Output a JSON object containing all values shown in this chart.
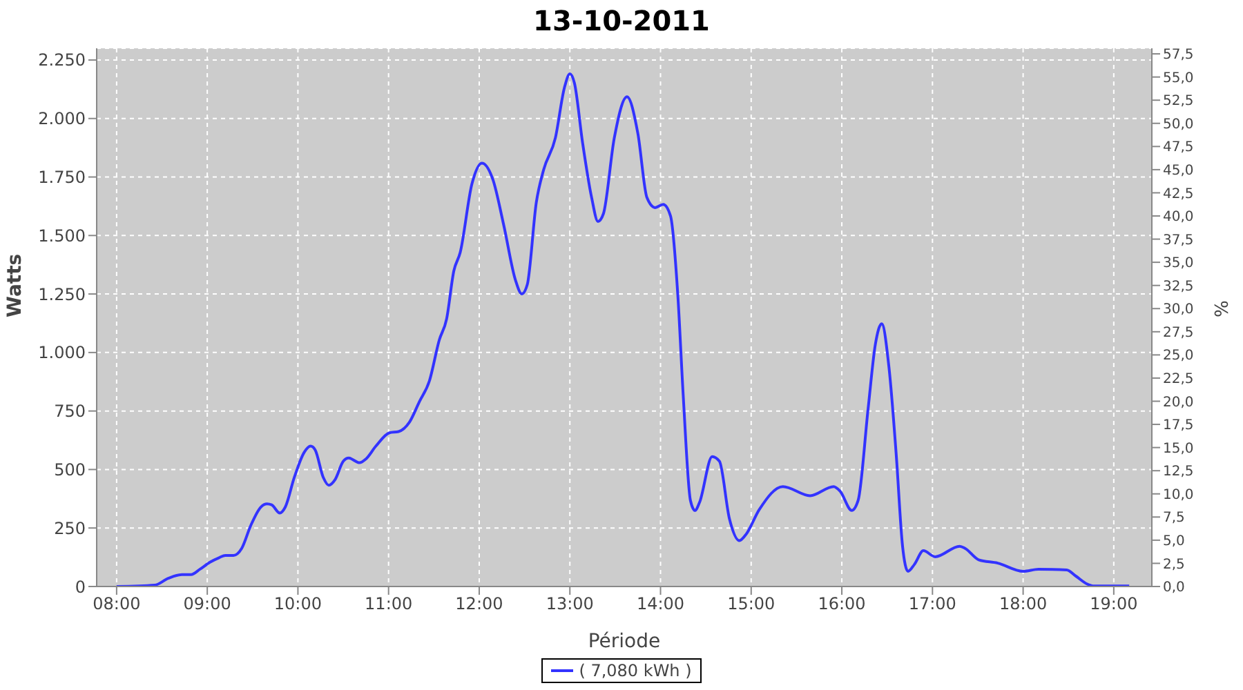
{
  "chart_data": {
    "type": "line",
    "title": "13-10-2011",
    "xlabel": "Période",
    "ylabel": "Watts",
    "y2label": "%",
    "x": [
      8.0,
      8.42,
      8.57,
      8.72,
      8.82,
      8.92,
      9.03,
      9.13,
      9.2,
      9.29,
      9.38,
      9.48,
      9.59,
      9.66,
      9.71,
      9.8,
      9.86,
      9.96,
      10.07,
      10.14,
      10.19,
      10.28,
      10.34,
      10.41,
      10.5,
      10.56,
      10.68,
      10.75,
      10.86,
      11.01,
      11.11,
      11.23,
      11.34,
      11.45,
      11.56,
      11.64,
      11.72,
      11.79,
      11.92,
      12.03,
      12.15,
      12.27,
      12.4,
      12.47,
      12.53,
      12.63,
      12.71,
      12.84,
      12.94,
      13.0,
      13.05,
      13.14,
      13.24,
      13.31,
      13.37,
      13.49,
      13.63,
      13.75,
      13.85,
      13.94,
      14.03,
      14.11,
      14.19,
      14.25,
      14.33,
      14.38,
      14.43,
      14.57,
      14.65,
      14.76,
      14.87,
      14.94,
      15.09,
      15.35,
      15.65,
      15.91,
      15.98,
      16.11,
      16.18,
      16.29,
      16.37,
      16.44,
      16.52,
      16.6,
      16.67,
      16.73,
      16.8,
      16.9,
      17.03,
      17.3,
      17.36,
      17.51,
      17.72,
      18.0,
      18.17,
      18.48,
      18.58,
      18.71,
      18.78,
      19.17
    ],
    "series": [
      {
        "name": "( 7,080 kWh )",
        "color": "#3333ff",
        "values": [
          0,
          6,
          35,
          51,
          51,
          74,
          104,
          123,
          133,
          133,
          163,
          261,
          339,
          353,
          349,
          314,
          339,
          466,
          574,
          600,
          584,
          466,
          433,
          457,
          535,
          549,
          529,
          545,
          600,
          657,
          662,
          702,
          790,
          878,
          1054,
          1143,
          1349,
          1427,
          1721,
          1809,
          1740,
          1545,
          1309,
          1250,
          1290,
          1642,
          1780,
          1917,
          2132,
          2191,
          2152,
          1897,
          1662,
          1560,
          1593,
          1917,
          2093,
          1936,
          1662,
          1619,
          1633,
          1584,
          1250,
          819,
          368,
          325,
          359,
          555,
          535,
          290,
          196,
          221,
          329,
          427,
          388,
          427,
          408,
          325,
          368,
          760,
          1035,
          1123,
          937,
          564,
          172,
          65,
          94,
          153,
          127,
          172,
          163,
          114,
          100,
          65,
          74,
          71,
          45,
          10,
          2,
          2
        ]
      }
    ],
    "xlim": [
      7.78,
      19.42
    ],
    "xticks": [
      {
        "value": 8,
        "label": "08:00"
      },
      {
        "value": 9,
        "label": "09:00"
      },
      {
        "value": 10,
        "label": "10:00"
      },
      {
        "value": 11,
        "label": "11:00"
      },
      {
        "value": 12,
        "label": "12:00"
      },
      {
        "value": 13,
        "label": "13:00"
      },
      {
        "value": 14,
        "label": "14:00"
      },
      {
        "value": 15,
        "label": "15:00"
      },
      {
        "value": 16,
        "label": "16:00"
      },
      {
        "value": 17,
        "label": "17:00"
      },
      {
        "value": 18,
        "label": "18:00"
      },
      {
        "value": 19,
        "label": "19:00"
      }
    ],
    "ylim": [
      0,
      2300
    ],
    "yticks": [
      0,
      250,
      500,
      750,
      {
        "value": 1000,
        "label": "1.000"
      },
      {
        "value": 1250,
        "label": "1.250"
      },
      {
        "value": 1500,
        "label": "1.500"
      },
      {
        "value": 1750,
        "label": "1.750"
      },
      {
        "value": 2000,
        "label": "2.000"
      },
      {
        "value": 2250,
        "label": "2.250"
      }
    ],
    "y2lim": [
      0,
      58.1
    ],
    "y2ticks": [
      {
        "value": 0,
        "label": "0,0"
      },
      {
        "value": 2.5,
        "label": "2,5"
      },
      {
        "value": 5,
        "label": "5,0"
      },
      {
        "value": 7.5,
        "label": "7,5"
      },
      {
        "value": 10,
        "label": "10,0"
      },
      {
        "value": 12.5,
        "label": "12,5"
      },
      {
        "value": 15,
        "label": "15,0"
      },
      {
        "value": 17.5,
        "label": "17,5"
      },
      {
        "value": 20,
        "label": "20,0"
      },
      {
        "value": 22.5,
        "label": "22,5"
      },
      {
        "value": 25,
        "label": "25,0"
      },
      {
        "value": 27.5,
        "label": "27,5"
      },
      {
        "value": 30,
        "label": "30,0"
      },
      {
        "value": 32.5,
        "label": "32,5"
      },
      {
        "value": 35,
        "label": "35,0"
      },
      {
        "value": 37.5,
        "label": "37,5"
      },
      {
        "value": 40,
        "label": "40,0"
      },
      {
        "value": 42.5,
        "label": "42,5"
      },
      {
        "value": 45,
        "label": "45,0"
      },
      {
        "value": 47.5,
        "label": "47,5"
      },
      {
        "value": 50,
        "label": "50,0"
      },
      {
        "value": 52.5,
        "label": "52,5"
      },
      {
        "value": 55,
        "label": "55,0"
      },
      {
        "value": 57.5,
        "label": "57,5"
      }
    ],
    "grid": true,
    "legend": "bottom",
    "marker": "none",
    "line_style": "solid"
  }
}
